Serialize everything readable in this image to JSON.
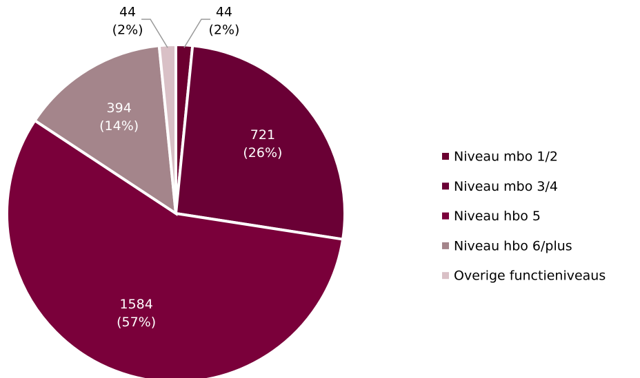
{
  "chart_data": {
    "type": "pie",
    "categories": [
      "Niveau mbo 1/2",
      "Niveau mbo 3/4",
      "Niveau hbo 5",
      "Niveau hbo 6/plus",
      "Overige functieniveaus"
    ],
    "values": [
      44,
      721,
      1584,
      394,
      44
    ],
    "percent_labels": [
      "(2%)",
      "(26%)",
      "(57%)",
      "(14%)",
      "(2%)"
    ],
    "colors": [
      "#6b0030",
      "#6a0035",
      "#7a003a",
      "#a4858b",
      "#d9c0c6"
    ],
    "legend": "right"
  }
}
